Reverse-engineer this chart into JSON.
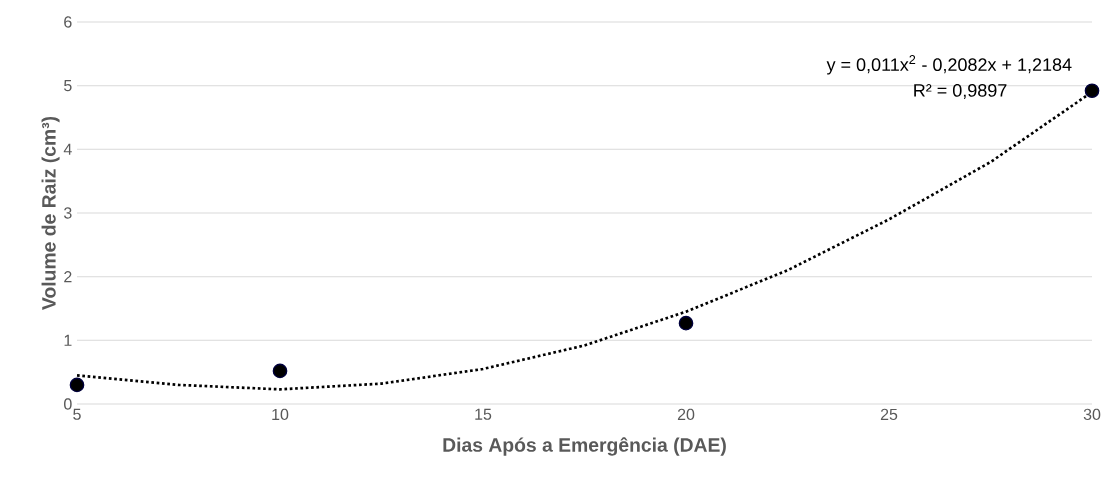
{
  "chart_data": {
    "type": "scatter",
    "xlabel": "Dias Após a Emergência (DAE)",
    "ylabel": "Volume de Raiz (cm³)",
    "xlim": [
      5,
      30
    ],
    "ylim": [
      0,
      6
    ],
    "xticks": [
      5,
      10,
      15,
      20,
      25,
      30
    ],
    "yticks": [
      0,
      1,
      2,
      3,
      4,
      5,
      6
    ],
    "grid": "y",
    "marker": "circle",
    "series": [
      {
        "type": "scatter",
        "color": "#000000",
        "x": [
          5,
          10,
          20,
          30
        ],
        "values": [
          0.3,
          0.52,
          1.27,
          4.92
        ]
      },
      {
        "type": "line",
        "color": "#000000",
        "line_style": "dotted",
        "marker": "none",
        "x": [
          5,
          7.5,
          10,
          12.5,
          15,
          17.5,
          20,
          22.5,
          25,
          27.5,
          30
        ],
        "values": [
          0.45,
          0.3,
          0.23,
          0.32,
          0.55,
          0.92,
          1.45,
          2.1,
          2.9,
          3.8,
          4.9
        ]
      }
    ],
    "annotations": [
      "y = 0,011x$^{2}$ - 0,2082x + 1,2184",
      "R² = 0,9897"
    ]
  }
}
